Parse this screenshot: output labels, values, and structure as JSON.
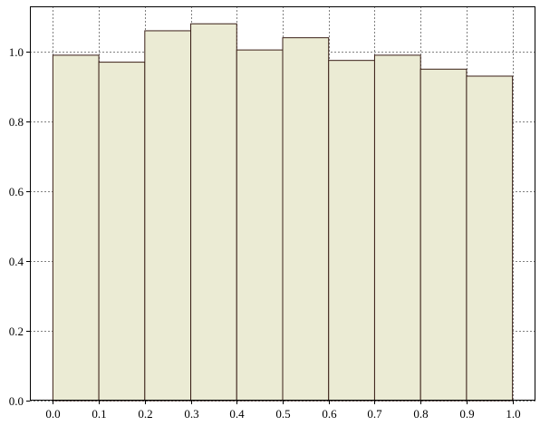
{
  "chart_data": {
    "type": "bar",
    "title": "",
    "xlabel": "",
    "ylabel": "",
    "bin_edges": [
      0.0,
      0.1,
      0.2,
      0.3,
      0.4,
      0.5,
      0.6,
      0.7,
      0.8,
      0.9,
      1.0
    ],
    "values": [
      0.99,
      0.97,
      1.06,
      1.08,
      1.005,
      1.04,
      0.975,
      0.99,
      0.95,
      0.93
    ],
    "xlim": [
      -0.05,
      1.05
    ],
    "ylim": [
      0.0,
      1.13
    ],
    "xticks": [
      "0.0",
      "0.1",
      "0.2",
      "0.3",
      "0.4",
      "0.5",
      "0.6",
      "0.7",
      "0.8",
      "0.9",
      "1.0"
    ],
    "yticks": [
      "0.0",
      "0.2",
      "0.4",
      "0.6",
      "0.8",
      "1.0"
    ],
    "grid": true,
    "bar_fill": "#ebebd4",
    "bar_edge": "#3a1f17",
    "grid_color": "#808080"
  }
}
